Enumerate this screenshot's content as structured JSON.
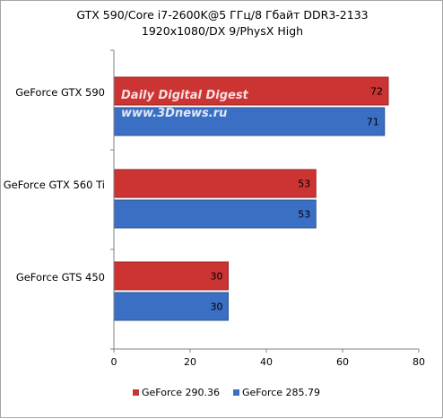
{
  "chart_data": {
    "type": "bar",
    "orientation": "horizontal",
    "title": "GTX 590/Core i7-2600K@5 ГГц/8 Гбайт DDR3-2133",
    "subtitle": "1920x1080/DX 9/PhysX High",
    "categories": [
      "GeForce GTX 590",
      "GeForce GTX 560 Ti",
      "GeForce GTS 450"
    ],
    "series": [
      {
        "name": "GeForce 290.36",
        "color": "#cc3333",
        "values": [
          72,
          53,
          30
        ]
      },
      {
        "name": "GeForce 285.79",
        "color": "#3b6fc4",
        "values": [
          71,
          53,
          30
        ]
      }
    ],
    "xlim": [
      0,
      80
    ],
    "xticks": [
      "0",
      "20",
      "40",
      "60",
      "80"
    ],
    "grid": false,
    "legend_position": "bottom",
    "watermark": [
      "Daily Digital Digest",
      "www.3Dnews.ru"
    ]
  }
}
